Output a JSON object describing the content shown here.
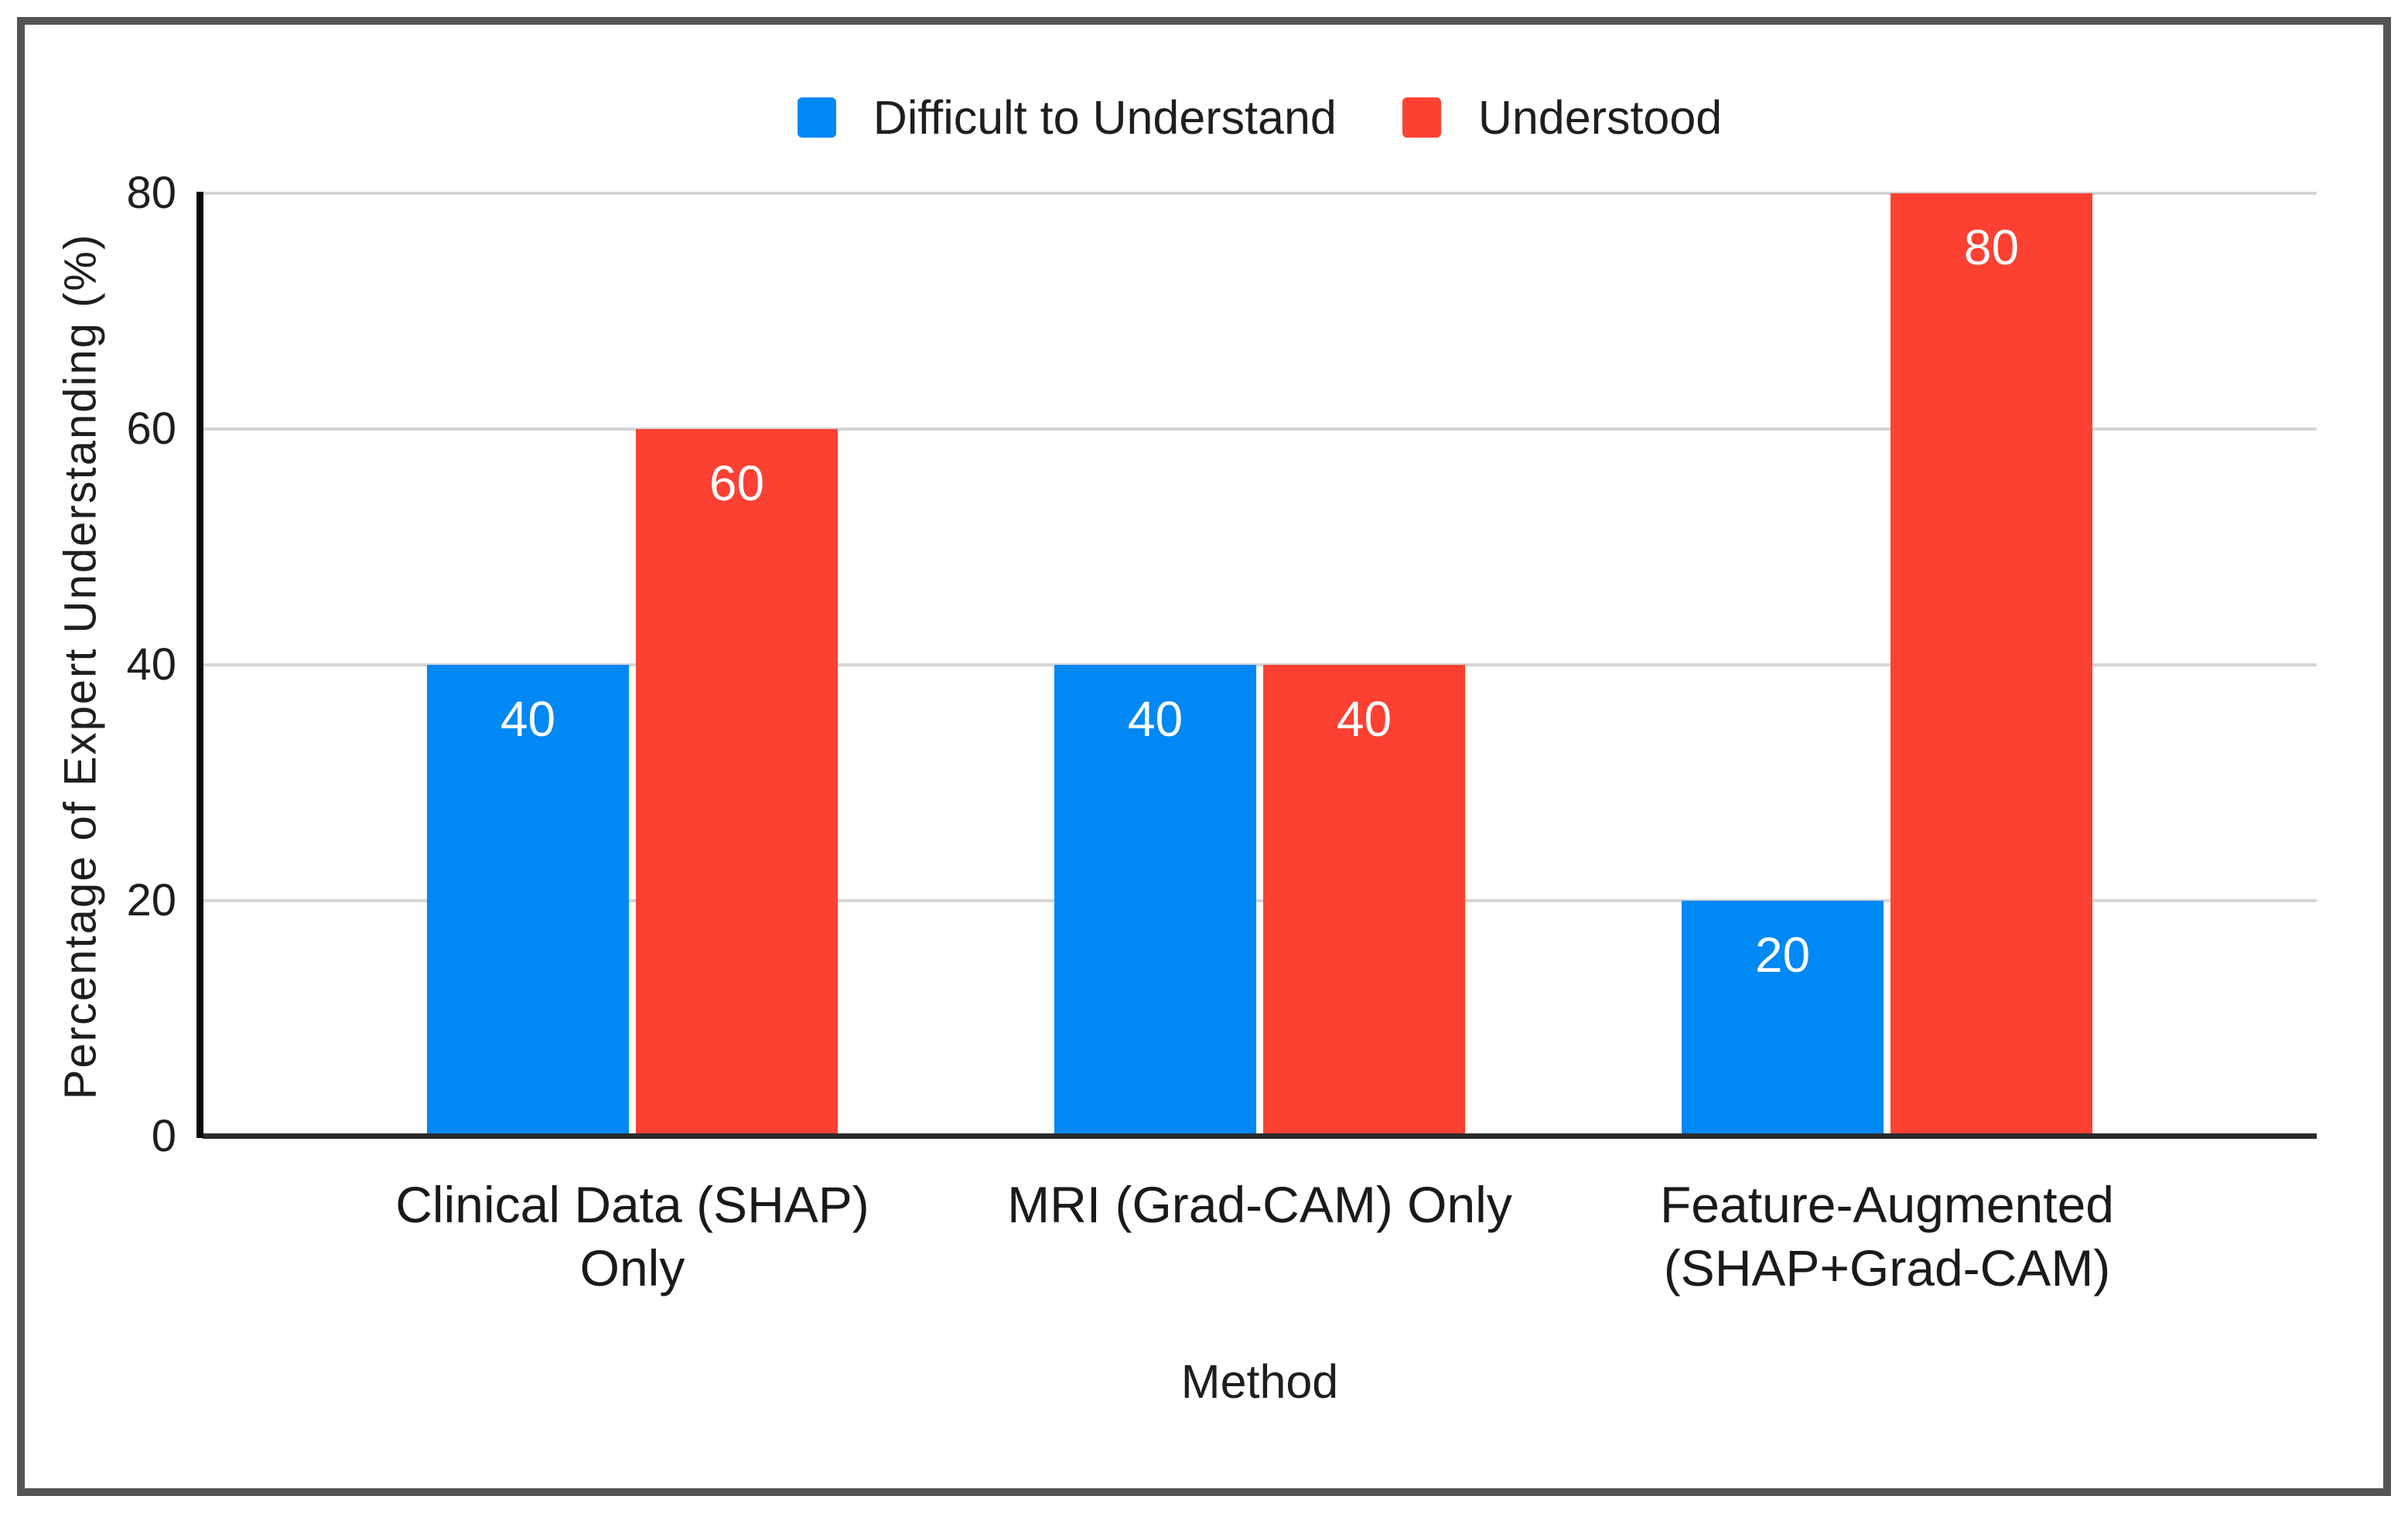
{
  "frame": {
    "border_color": "#545454",
    "background": "#ffffff"
  },
  "chart_data": {
    "type": "bar",
    "title": "",
    "categories": [
      "Clinical Data (SHAP)\nOnly",
      "MRI (Grad-CAM) Only",
      "Feature-Augmented\n(SHAP+Grad-CAM)"
    ],
    "series": [
      {
        "name": "Difficult to Understand",
        "color": "#0088f5",
        "values": [
          40,
          40,
          20
        ]
      },
      {
        "name": "Understood",
        "color": "#fc4132",
        "values": [
          60,
          40,
          80
        ]
      }
    ],
    "xlabel": "Method",
    "ylabel": "Percentage of Expert Understanding (%)",
    "ylim": [
      0,
      80
    ],
    "yticks": [
      0,
      20,
      40,
      60,
      80
    ],
    "grid": true,
    "gridline_color": "#d5d5d5",
    "axis_line_color": "#0a0a0a",
    "baseline_color": "#2b2b2b",
    "legend_position": "top",
    "bar_value_labels": true,
    "value_label_color": "#ffffff"
  }
}
